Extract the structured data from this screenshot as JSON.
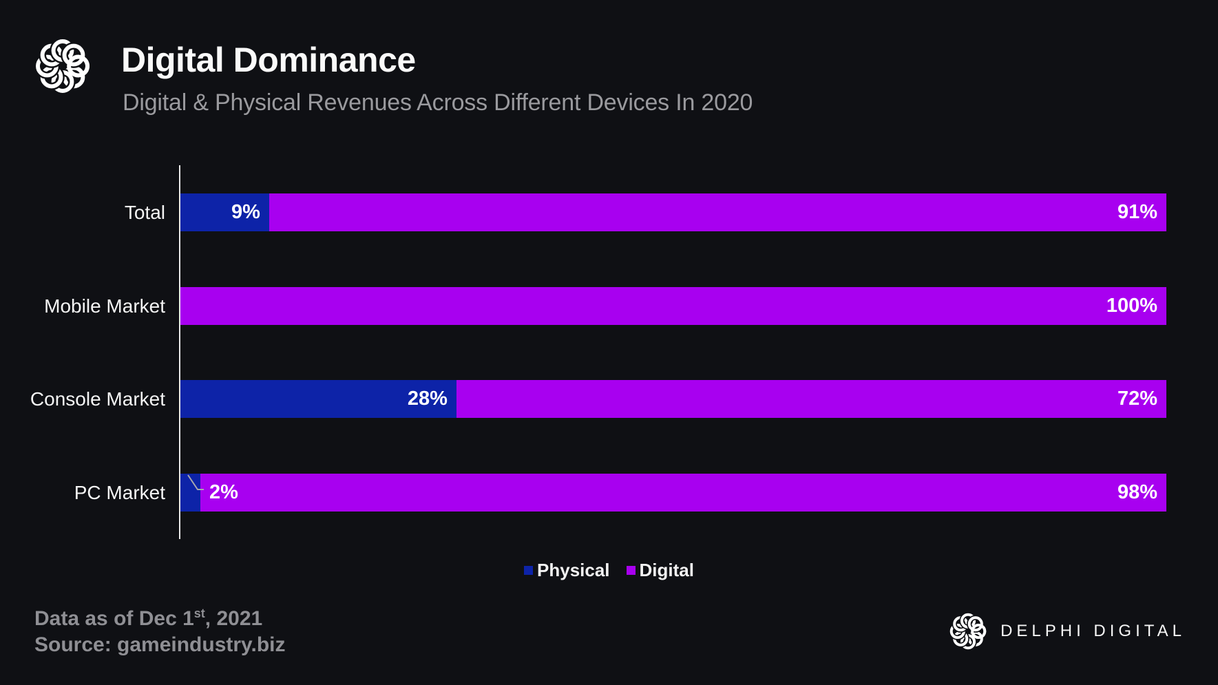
{
  "header": {
    "title": "Digital Dominance",
    "subtitle": "Digital & Physical Revenues Across Different Devices In 2020"
  },
  "chart_data": {
    "type": "bar",
    "orientation": "horizontal",
    "stacked": true,
    "unit": "%",
    "title": "Digital Dominance",
    "subtitle": "Digital & Physical Revenues Across Different Devices In 2020",
    "categories": [
      "Total",
      "Mobile Market",
      "Console Market",
      "PC Market"
    ],
    "series": [
      {
        "name": "Physical",
        "color": "#0d23a8",
        "values": [
          9,
          0,
          28,
          2
        ],
        "labels": [
          "9%",
          "",
          "28%",
          "2%"
        ]
      },
      {
        "name": "Digital",
        "color": "#a800f0",
        "values": [
          91,
          100,
          72,
          98
        ],
        "labels": [
          "91%",
          "100%",
          "72%",
          "98%"
        ]
      }
    ],
    "xlim": [
      0,
      100
    ],
    "grid": false,
    "legend_position": "bottom"
  },
  "footer": {
    "date_prefix": "Data as of Dec 1",
    "date_sup": "st",
    "date_suffix": ", 2021",
    "source": "Source: gameindustry.biz",
    "brand": "DELPHI DIGITAL"
  },
  "colors": {
    "background": "#0f1014",
    "physical": "#0d23a8",
    "digital": "#a800f0",
    "title_text": "#fafafa",
    "subtitle_text": "#9a9a9e",
    "footnote_text": "#8f8f94",
    "axis_line": "#e8e8e8",
    "callout_line": "#a9a9ad"
  }
}
